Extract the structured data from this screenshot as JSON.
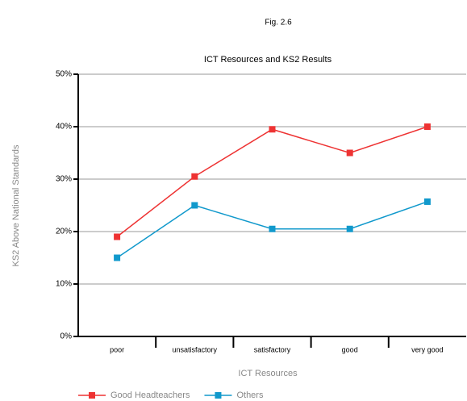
{
  "chart_data": {
    "type": "line",
    "figure_label": "Fig. 2.6",
    "title": "ICT Resources and KS2 Results",
    "x_label": "ICT Resources",
    "y_label": "KS2 Above National Standards",
    "categories": [
      "poor",
      "unsatisfactory",
      "satisfactory",
      "good",
      "very good"
    ],
    "series": [
      {
        "name": "Good Headteachers",
        "color": "#ee3333",
        "values": [
          19,
          30.5,
          39.5,
          35,
          40
        ]
      },
      {
        "name": "Others",
        "color": "#1199cc",
        "values": [
          15,
          25,
          20.5,
          20.5,
          25.7
        ]
      }
    ],
    "ylim": [
      0,
      50
    ],
    "yticks": [
      {
        "value": 0,
        "label": "0%"
      },
      {
        "value": 10,
        "label": "10%"
      },
      {
        "value": 20,
        "label": "20%"
      },
      {
        "value": 30,
        "label": "30%"
      },
      {
        "value": 40,
        "label": "40%"
      },
      {
        "value": 50,
        "label": "50%"
      }
    ],
    "grid": true,
    "legend": "bottom"
  }
}
